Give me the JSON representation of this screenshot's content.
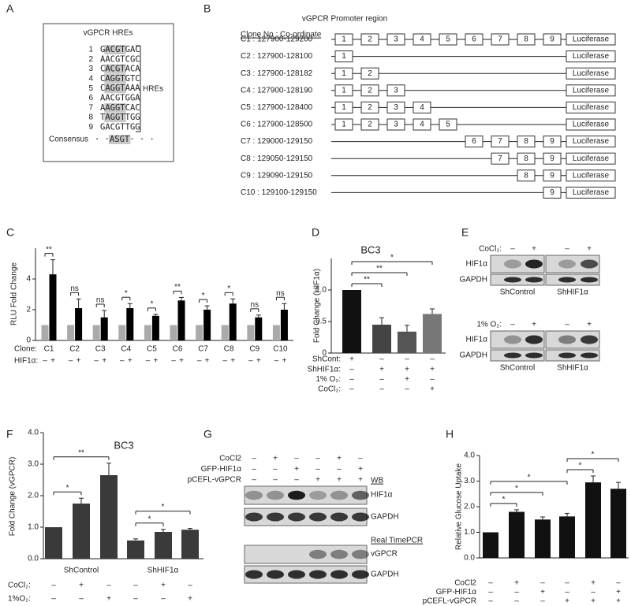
{
  "figure": {
    "panel_labels": [
      "A",
      "B",
      "C",
      "D",
      "E",
      "F",
      "G",
      "H"
    ]
  },
  "panel_a": {
    "title": "vGPCR HREs",
    "rows": [
      {
        "number": "1",
        "lead": "G",
        "core": "ACGT",
        "tail": "GAC",
        "highlight": true
      },
      {
        "number": "2",
        "lead": "A",
        "core": "ACGT",
        "tail": "CGC",
        "highlight": false
      },
      {
        "number": "3",
        "lead": "C",
        "core": "ACGT",
        "tail": "ACA",
        "highlight": true
      },
      {
        "number": "4",
        "lead": "C",
        "core": "AGGT",
        "tail": "GTC",
        "highlight": true
      },
      {
        "number": "5",
        "lead": "C",
        "core": "AGGT",
        "tail": "AAA",
        "highlight": true
      },
      {
        "number": "6",
        "lead": "A",
        "core": "ACGT",
        "tail": "GGA",
        "highlight": false
      },
      {
        "number": "7",
        "lead": "A",
        "core": "AGGT",
        "tail": "CAC",
        "highlight": true
      },
      {
        "number": "8",
        "lead": "T",
        "core": "AGGT",
        "tail": "TGG",
        "highlight": true
      },
      {
        "number": "9",
        "lead": "G",
        "core": "ACGT",
        "tail": "TGG",
        "highlight": false
      }
    ],
    "bracket_label": "HREs",
    "consensus": {
      "label": "Consensus",
      "lead": "· ·",
      "core": "ASGT",
      "tail": "· · ·",
      "highlight": true
    }
  },
  "panel_b": {
    "title": "vGPCR Promoter region",
    "header": "Clone No : Co-ordinate",
    "rows": [
      {
        "label": "C1 : 127900-129200",
        "boxes": [
          "1",
          "2",
          "3",
          "4",
          "5",
          "6",
          "7",
          "8",
          "9"
        ],
        "reporter": "Luciferase"
      },
      {
        "label": "C2 : 127900-128100",
        "boxes": [
          "1"
        ],
        "reporter": "Luciferase"
      },
      {
        "label": "C3 : 127900-128182",
        "boxes": [
          "1",
          "2"
        ],
        "reporter": "Luciferase"
      },
      {
        "label": "C4 : 127900-128190",
        "boxes": [
          "1",
          "2",
          "3"
        ],
        "reporter": "Luciferase"
      },
      {
        "label": "C5 : 127900-128400",
        "boxes": [
          "1",
          "2",
          "3",
          "4"
        ],
        "reporter": "Luciferase"
      },
      {
        "label": "C6 : 127900-128500",
        "boxes": [
          "1",
          "2",
          "3",
          "4",
          "5"
        ],
        "reporter": "Luciferase"
      },
      {
        "label": "C7 : 129000-129150",
        "boxes": [
          "6",
          "7",
          "8",
          "9"
        ],
        "reporter": "Luciferase"
      },
      {
        "label": "C8 : 129050-129150",
        "boxes": [
          "7",
          "8",
          "9"
        ],
        "reporter": "Luciferase"
      },
      {
        "label": "C9 : 129090-129150",
        "boxes": [
          "8",
          "9"
        ],
        "reporter": "Luciferase"
      },
      {
        "label": "C10 : 129100-129150",
        "boxes": [
          "9"
        ],
        "reporter": "Luciferase"
      }
    ]
  },
  "chart_data": [
    {
      "type": "bar",
      "ylabel": "RLU Fold Change",
      "category_label": "Clone:",
      "categories": [
        "C1",
        "C2",
        "C3",
        "C4",
        "C5",
        "C6",
        "C7",
        "C8",
        "C9",
        "C10"
      ],
      "series": [
        {
          "color": "#aaaaaa",
          "values": [
            1,
            1,
            1,
            1,
            1,
            1,
            1,
            1,
            1,
            1
          ]
        },
        {
          "color": "#000000",
          "values": [
            4.3,
            2.1,
            1.5,
            2.1,
            1.6,
            2.6,
            2.0,
            2.4,
            1.5,
            2.0
          ],
          "errors": [
            0.95,
            0.6,
            0.45,
            0.3,
            0.1,
            0.2,
            0.25,
            0.3,
            0.15,
            0.4
          ]
        }
      ],
      "ylim": [
        0,
        6
      ],
      "yticks": [
        0,
        2,
        4
      ],
      "annotations": [
        "**",
        "ns",
        "ns",
        "*",
        "*",
        "**",
        "*",
        "*",
        "ns",
        "ns"
      ],
      "conditions": [
        {
          "label": "HIF1α:",
          "signs": [
            "–",
            "+",
            "–",
            "+",
            "–",
            "+",
            "–",
            "+",
            "–",
            "+",
            "–",
            "+",
            "–",
            "+",
            "–",
            "+",
            "–",
            "+",
            "–",
            "+"
          ]
        }
      ]
    },
    {
      "type": "bar",
      "title": "BC3",
      "ylabel": "Fold Change (HIF1α)",
      "values": [
        1.0,
        0.45,
        0.34,
        0.62
      ],
      "errors": [
        null,
        0.11,
        0.1,
        0.08
      ],
      "colors": [
        "#111111",
        "#444444",
        "#555555",
        "#777777"
      ],
      "ylim": [
        0,
        1.5
      ],
      "yticks": [
        0,
        0.5,
        {
          "value": 1,
          "label": "1.0"
        }
      ],
      "annotations": [
        "**",
        "**",
        "*"
      ],
      "conditions": [
        {
          "label": "ShCont:",
          "signs": [
            "+",
            "–",
            "–",
            "–"
          ]
        },
        {
          "label": "ShHIF1α:",
          "signs": [
            "–",
            "+",
            "+",
            "+"
          ]
        },
        {
          "label": "1% O₂:",
          "signs": [
            "–",
            "–",
            "+",
            "–"
          ]
        },
        {
          "label": "CoCl₂:",
          "signs": [
            "–",
            "–",
            "–",
            "+"
          ]
        }
      ]
    },
    {
      "type": "bar",
      "title": "BC3",
      "ylabel": "Fold Change (vGPCR)",
      "values": [
        1.0,
        1.75,
        2.65,
        0.58,
        0.85,
        0.92
      ],
      "errors": [
        null,
        0.17,
        0.38,
        0.05,
        0.08,
        0.04
      ],
      "color": "#3a3a3a",
      "ylim": [
        0,
        4
      ],
      "yticks": [
        {
          "value": 0,
          "label": "0.0"
        },
        {
          "value": 1,
          "label": "1.0"
        },
        {
          "value": 2,
          "label": "2.0"
        },
        {
          "value": 3,
          "label": "3.0"
        },
        {
          "value": 4,
          "label": "4.0"
        }
      ],
      "groups": [
        "ShControl",
        "ShHIF1α"
      ],
      "annotations": [
        "*",
        "**",
        "*",
        "*"
      ],
      "conditions": [
        {
          "label": "CoCl₂:",
          "signs": [
            "–",
            "+",
            "–",
            "–",
            "+",
            "–"
          ]
        },
        {
          "label": "1%O₂:",
          "signs": [
            "–",
            "–",
            "+",
            "–",
            "–",
            "+"
          ]
        }
      ]
    },
    {
      "type": "bar",
      "ylabel": "Relative Glucose Uptake",
      "values": [
        1.0,
        1.8,
        1.5,
        1.62,
        2.95,
        2.7
      ],
      "errors": [
        null,
        0.08,
        0.1,
        0.12,
        0.25,
        0.25
      ],
      "color": "#111111",
      "ylim": [
        0,
        4
      ],
      "yticks": [
        {
          "value": 0,
          "label": "0.0"
        },
        {
          "value": 1,
          "label": "1.0"
        },
        {
          "value": 2,
          "label": "2.0"
        },
        {
          "value": 3,
          "label": "3.0"
        },
        {
          "value": 4,
          "label": "4.0"
        }
      ],
      "annotations": [
        "*",
        "*",
        "*",
        "*",
        "*"
      ],
      "conditions": [
        {
          "label": "CoCl2",
          "signs": [
            "–",
            "+",
            "–",
            "–",
            "+",
            "–"
          ]
        },
        {
          "label": "GFP-HIF1α",
          "signs": [
            "–",
            "–",
            "+",
            "–",
            "–",
            "+"
          ]
        },
        {
          "label": "pCEFL-vGPCR",
          "signs": [
            "–",
            "–",
            "–",
            "+",
            "+",
            "+"
          ]
        }
      ]
    }
  ],
  "panel_e": {
    "blots": [
      {
        "treatment": "CoCl₂:",
        "signs": [
          "–",
          "+",
          "–",
          "+"
        ],
        "bands": [
          "HIF1α",
          "GAPDH"
        ],
        "groups": [
          "ShControl",
          "ShHIF1α"
        ]
      },
      {
        "treatment": "1% O₂:",
        "signs": [
          "–",
          "+",
          "–",
          "+"
        ],
        "bands": [
          "HIF1α",
          "GAPDH"
        ],
        "groups": [
          "ShControl",
          "ShHIF1α"
        ]
      }
    ]
  },
  "panel_g": {
    "conditions": [
      {
        "label": "CoCl2",
        "signs": [
          "–",
          "+",
          "–",
          "–",
          "+",
          "–"
        ]
      },
      {
        "label": "GFP-HIF1α",
        "signs": [
          "–",
          "–",
          "+",
          "–",
          "–",
          "+"
        ]
      },
      {
        "label": "pCEFL-vGPCR",
        "signs": [
          "–",
          "–",
          "–",
          "+",
          "+",
          "+"
        ]
      }
    ],
    "sections": [
      {
        "title": "WB",
        "bands": [
          "HIF1α",
          "GAPDH"
        ]
      },
      {
        "title": "Real TimePCR",
        "bands": [
          "vGPCR",
          "GAPDH"
        ]
      }
    ]
  }
}
